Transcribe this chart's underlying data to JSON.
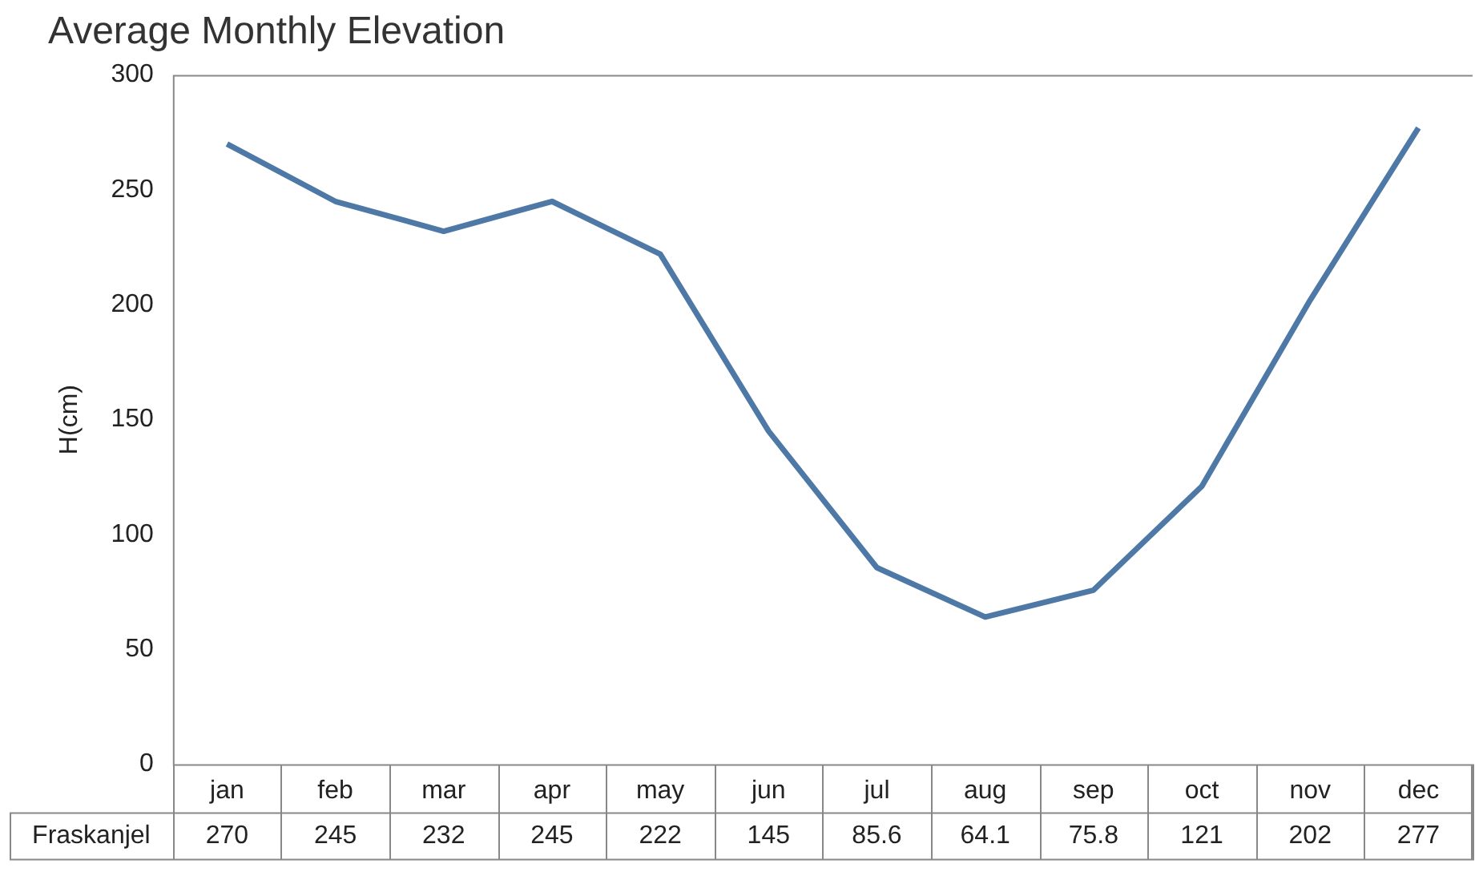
{
  "chart_data": {
    "type": "line",
    "title": "Average Monthly Elevation",
    "ylabel": "H(cm)",
    "categories": [
      "jan",
      "feb",
      "mar",
      "apr",
      "may",
      "jun",
      "jul",
      "aug",
      "sep",
      "oct",
      "nov",
      "dec"
    ],
    "series": [
      {
        "name": "Fraskanjel",
        "color": "#4e79a7",
        "values": [
          270,
          245,
          232,
          245,
          222,
          145,
          85.6,
          64.1,
          75.8,
          121,
          202,
          277
        ]
      }
    ],
    "ylim": [
      0,
      300
    ],
    "yticks": [
      0,
      50,
      100,
      150,
      200,
      250,
      300
    ],
    "grid": false,
    "legend": false,
    "marker": "none",
    "line_style": "solid",
    "data_labels": true
  }
}
